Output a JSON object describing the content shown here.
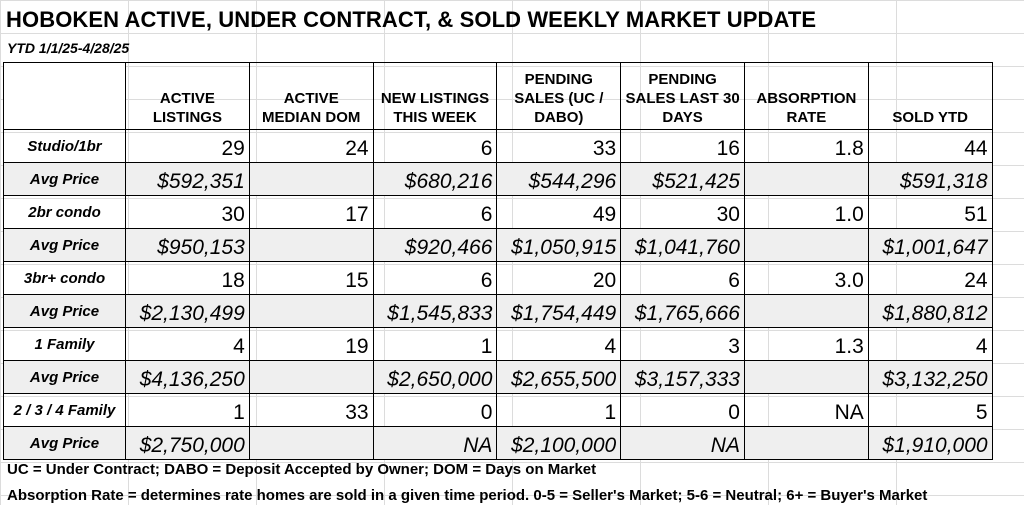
{
  "title": "HOBOKEN ACTIVE, UNDER CONTRACT, & SOLD WEEKLY MARKET UPDATE",
  "subtitle": "YTD 1/1/25-4/28/25",
  "columns": [
    "ACTIVE LISTINGS",
    "ACTIVE MEDIAN DOM",
    "NEW LISTINGS THIS WEEK",
    "PENDING SALES (UC / DABO)",
    "PENDING SALES LAST 30 DAYS",
    "ABSORPTION RATE",
    "SOLD YTD"
  ],
  "rows": [
    {
      "label": "Studio/1br",
      "type": "count",
      "cells": [
        "29",
        "24",
        "6",
        "33",
        "16",
        "1.8",
        "44"
      ]
    },
    {
      "label": "Avg Price",
      "type": "price",
      "cells": [
        "$592,351",
        "",
        "$680,216",
        "$544,296",
        "$521,425",
        "",
        "$591,318"
      ]
    },
    {
      "label": "2br condo",
      "type": "count",
      "cells": [
        "30",
        "17",
        "6",
        "49",
        "30",
        "1.0",
        "51"
      ]
    },
    {
      "label": "Avg Price",
      "type": "price",
      "cells": [
        "$950,153",
        "",
        "$920,466",
        "$1,050,915",
        "$1,041,760",
        "",
        "$1,001,647"
      ]
    },
    {
      "label": "3br+ condo",
      "type": "count",
      "cells": [
        "18",
        "15",
        "6",
        "20",
        "6",
        "3.0",
        "24"
      ]
    },
    {
      "label": "Avg Price",
      "type": "price",
      "cells": [
        "$2,130,499",
        "",
        "$1,545,833",
        "$1,754,449",
        "$1,765,666",
        "",
        "$1,880,812"
      ]
    },
    {
      "label": "1 Family",
      "type": "count",
      "cells": [
        "4",
        "19",
        "1",
        "4",
        "3",
        "1.3",
        "4"
      ]
    },
    {
      "label": "Avg Price",
      "type": "price",
      "cells": [
        "$4,136,250",
        "",
        "$2,650,000",
        "$2,655,500",
        "$3,157,333",
        "",
        "$3,132,250"
      ]
    },
    {
      "label": "2 / 3 / 4 Family",
      "type": "count",
      "cells": [
        "1",
        "33",
        "0",
        "1",
        "0",
        "NA",
        "5"
      ]
    },
    {
      "label": "Avg Price",
      "type": "price",
      "cells": [
        "$2,750,000",
        "",
        "NA",
        "$2,100,000",
        "NA",
        "",
        "$1,910,000"
      ]
    }
  ],
  "notes": {
    "legend": "UC = Under Contract; DABO = Deposit Accepted by Owner; DOM = Days on Market",
    "absorption": "Absorption Rate = determines rate homes are sold in a given time period.  0-5 = Seller's Market; 5-6 = Neutral; 6+ = Buyer's Market"
  }
}
